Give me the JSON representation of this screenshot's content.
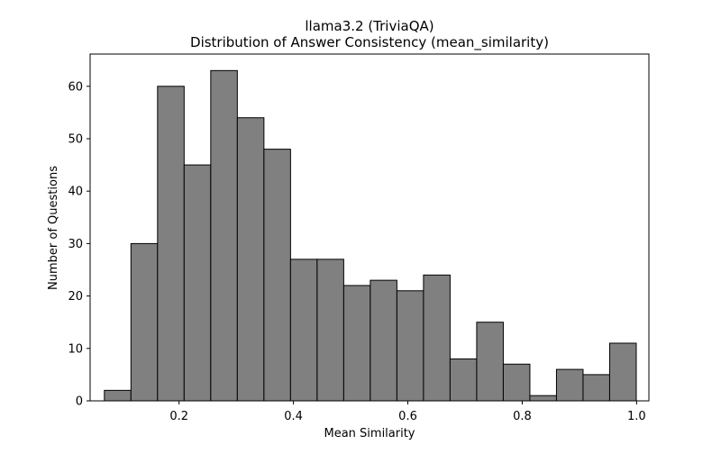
{
  "chart_data": {
    "type": "bar",
    "title_line1": "llama3.2 (TriviaQA)",
    "title_line2": "Distribution of Answer Consistency (mean_similarity)",
    "xlabel": "Mean Similarity",
    "ylabel": "Number of Questions",
    "xlim": [
      0.0445,
      1.0215
    ],
    "ylim": [
      0,
      66.15
    ],
    "x_ticks": [
      0.2,
      0.4,
      0.6,
      0.8,
      1.0
    ],
    "x_tick_labels": [
      "0.2",
      "0.4",
      "0.6",
      "0.8",
      "1.0"
    ],
    "y_ticks": [
      0,
      10,
      20,
      30,
      40,
      50,
      60
    ],
    "y_tick_labels": [
      "0",
      "10",
      "20",
      "30",
      "40",
      "50",
      "60"
    ],
    "bin_edges": [
      0.0694,
      0.1159,
      0.1624,
      0.2089,
      0.2554,
      0.3019,
      0.3484,
      0.3949,
      0.4414,
      0.4879,
      0.5344,
      0.5809,
      0.6274,
      0.6739,
      0.7204,
      0.7669,
      0.8134,
      0.8599,
      0.9064,
      0.9529,
      0.9994
    ],
    "counts": [
      2,
      30,
      60,
      45,
      63,
      54,
      48,
      27,
      27,
      22,
      23,
      21,
      24,
      8,
      15,
      7,
      1,
      6,
      5,
      11
    ],
    "bar_color": "#808080",
    "edge_color": "#000000",
    "grid": false,
    "legend": "none"
  }
}
